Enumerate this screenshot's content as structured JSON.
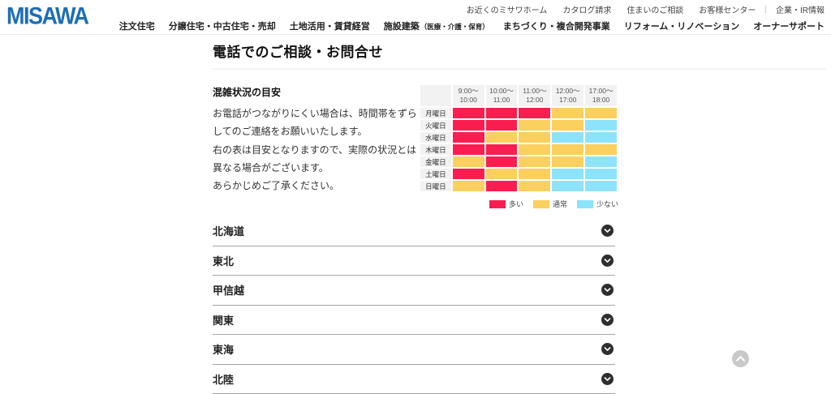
{
  "header": {
    "logo": "MISAWA",
    "utility_nav": [
      "お近くのミサワホーム",
      "カタログ請求",
      "住まいのご相談",
      "お客様センター",
      "企業・IR情報"
    ],
    "main_nav": [
      {
        "label": "注文住宅"
      },
      {
        "label": "分譲住宅・中古住宅・売却"
      },
      {
        "label": "土地活用・賃貸経営"
      },
      {
        "label": "施設建築",
        "sub": "（医療・介護・保育）"
      },
      {
        "label": "まちづくり・複合開発事業"
      },
      {
        "label": "リフォーム・リノベーション"
      },
      {
        "label": "オーナーサポート"
      }
    ]
  },
  "page": {
    "title": "電話でのご相談・お問合せ"
  },
  "congestion": {
    "heading": "混雑状況の目安",
    "paragraphs": [
      "お電話がつながりにくい場合は、時間帯をずらしてのご連絡をお願いいたします。",
      "右の表は目安となりますので、実際の状況とは異なる場合がございます。",
      "あらかじめご了承ください。"
    ]
  },
  "congestion_table": {
    "type": "heatmap",
    "columns": [
      "9:00～\n10:00",
      "10:00～\n11:00",
      "11:00～\n12:00",
      "12:00～\n17:00",
      "17:00～\n18:00"
    ],
    "level_colors": {
      "high": "#fa1e50",
      "mid": "#fbd05e",
      "low": "#8ee3fc"
    },
    "legend": [
      {
        "level": "high",
        "label": "多い"
      },
      {
        "level": "mid",
        "label": "通常"
      },
      {
        "level": "low",
        "label": "少ない"
      }
    ],
    "rows": [
      {
        "day": "月曜日",
        "levels": [
          "high",
          "high",
          "high",
          "mid",
          "mid"
        ]
      },
      {
        "day": "火曜日",
        "levels": [
          "high",
          "high",
          "mid",
          "mid",
          "low"
        ]
      },
      {
        "day": "水曜日",
        "levels": [
          "high",
          "mid",
          "mid",
          "low",
          "low"
        ]
      },
      {
        "day": "木曜日",
        "levels": [
          "high",
          "high",
          "mid",
          "mid",
          "mid"
        ]
      },
      {
        "day": "金曜日",
        "levels": [
          "mid",
          "high",
          "mid",
          "mid",
          "low"
        ]
      },
      {
        "day": "土曜日",
        "levels": [
          "high",
          "mid",
          "mid",
          "low",
          "low"
        ]
      },
      {
        "day": "日曜日",
        "levels": [
          "mid",
          "high",
          "mid",
          "low",
          "low"
        ]
      }
    ]
  },
  "regions": [
    "北海道",
    "東北",
    "甲信越",
    "関東",
    "東海",
    "北陸"
  ],
  "colors": {
    "brand_blue": "#1c6eb7",
    "busy_red": "#fa1e50",
    "normal_yellow": "#fbd05e",
    "low_blue": "#8ee3fc",
    "table_gray": "#f2f2f2"
  }
}
